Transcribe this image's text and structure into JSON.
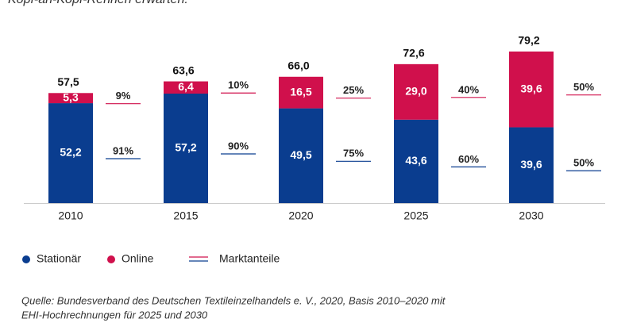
{
  "chart_data": {
    "type": "stacked_bar",
    "intro": "Kopf-an-Kopf-Rennen erwarten.",
    "categories": [
      "2010",
      "2015",
      "2020",
      "2025",
      "2030"
    ],
    "series": [
      {
        "name": "Stationär",
        "color": "#0a3d8f",
        "values": [
          52.2,
          57.2,
          49.5,
          43.6,
          39.6
        ],
        "value_labels": [
          "52,2",
          "57,2",
          "49,5",
          "43,6",
          "39,6"
        ],
        "shares": [
          91,
          90,
          75,
          60,
          50
        ],
        "share_labels": [
          "91%",
          "90%",
          "75%",
          "60%",
          "50%"
        ]
      },
      {
        "name": "Online",
        "color": "#d0104c",
        "values": [
          5.3,
          6.4,
          16.5,
          29.0,
          39.6
        ],
        "value_labels": [
          "5,3",
          "6,4",
          "16,5",
          "29,0",
          "39,6"
        ],
        "shares": [
          9,
          10,
          25,
          40,
          50
        ],
        "share_labels": [
          "9%",
          "10%",
          "25%",
          "40%",
          "50%"
        ]
      }
    ],
    "totals": [
      57.5,
      63.6,
      66.0,
      72.6,
      79.2
    ],
    "total_labels": [
      "57,5",
      "63,6",
      "66,0",
      "72,6",
      "79,2"
    ],
    "share_legend": "Marktanteile",
    "ylim": [
      0,
      80
    ],
    "source": [
      "Quelle: Bundesverband des Deutschen Textileinzelhandels e. V., 2020, Basis 2010–2020 mit",
      "EHI-Hochrechnungen für 2025 und 2030"
    ]
  }
}
